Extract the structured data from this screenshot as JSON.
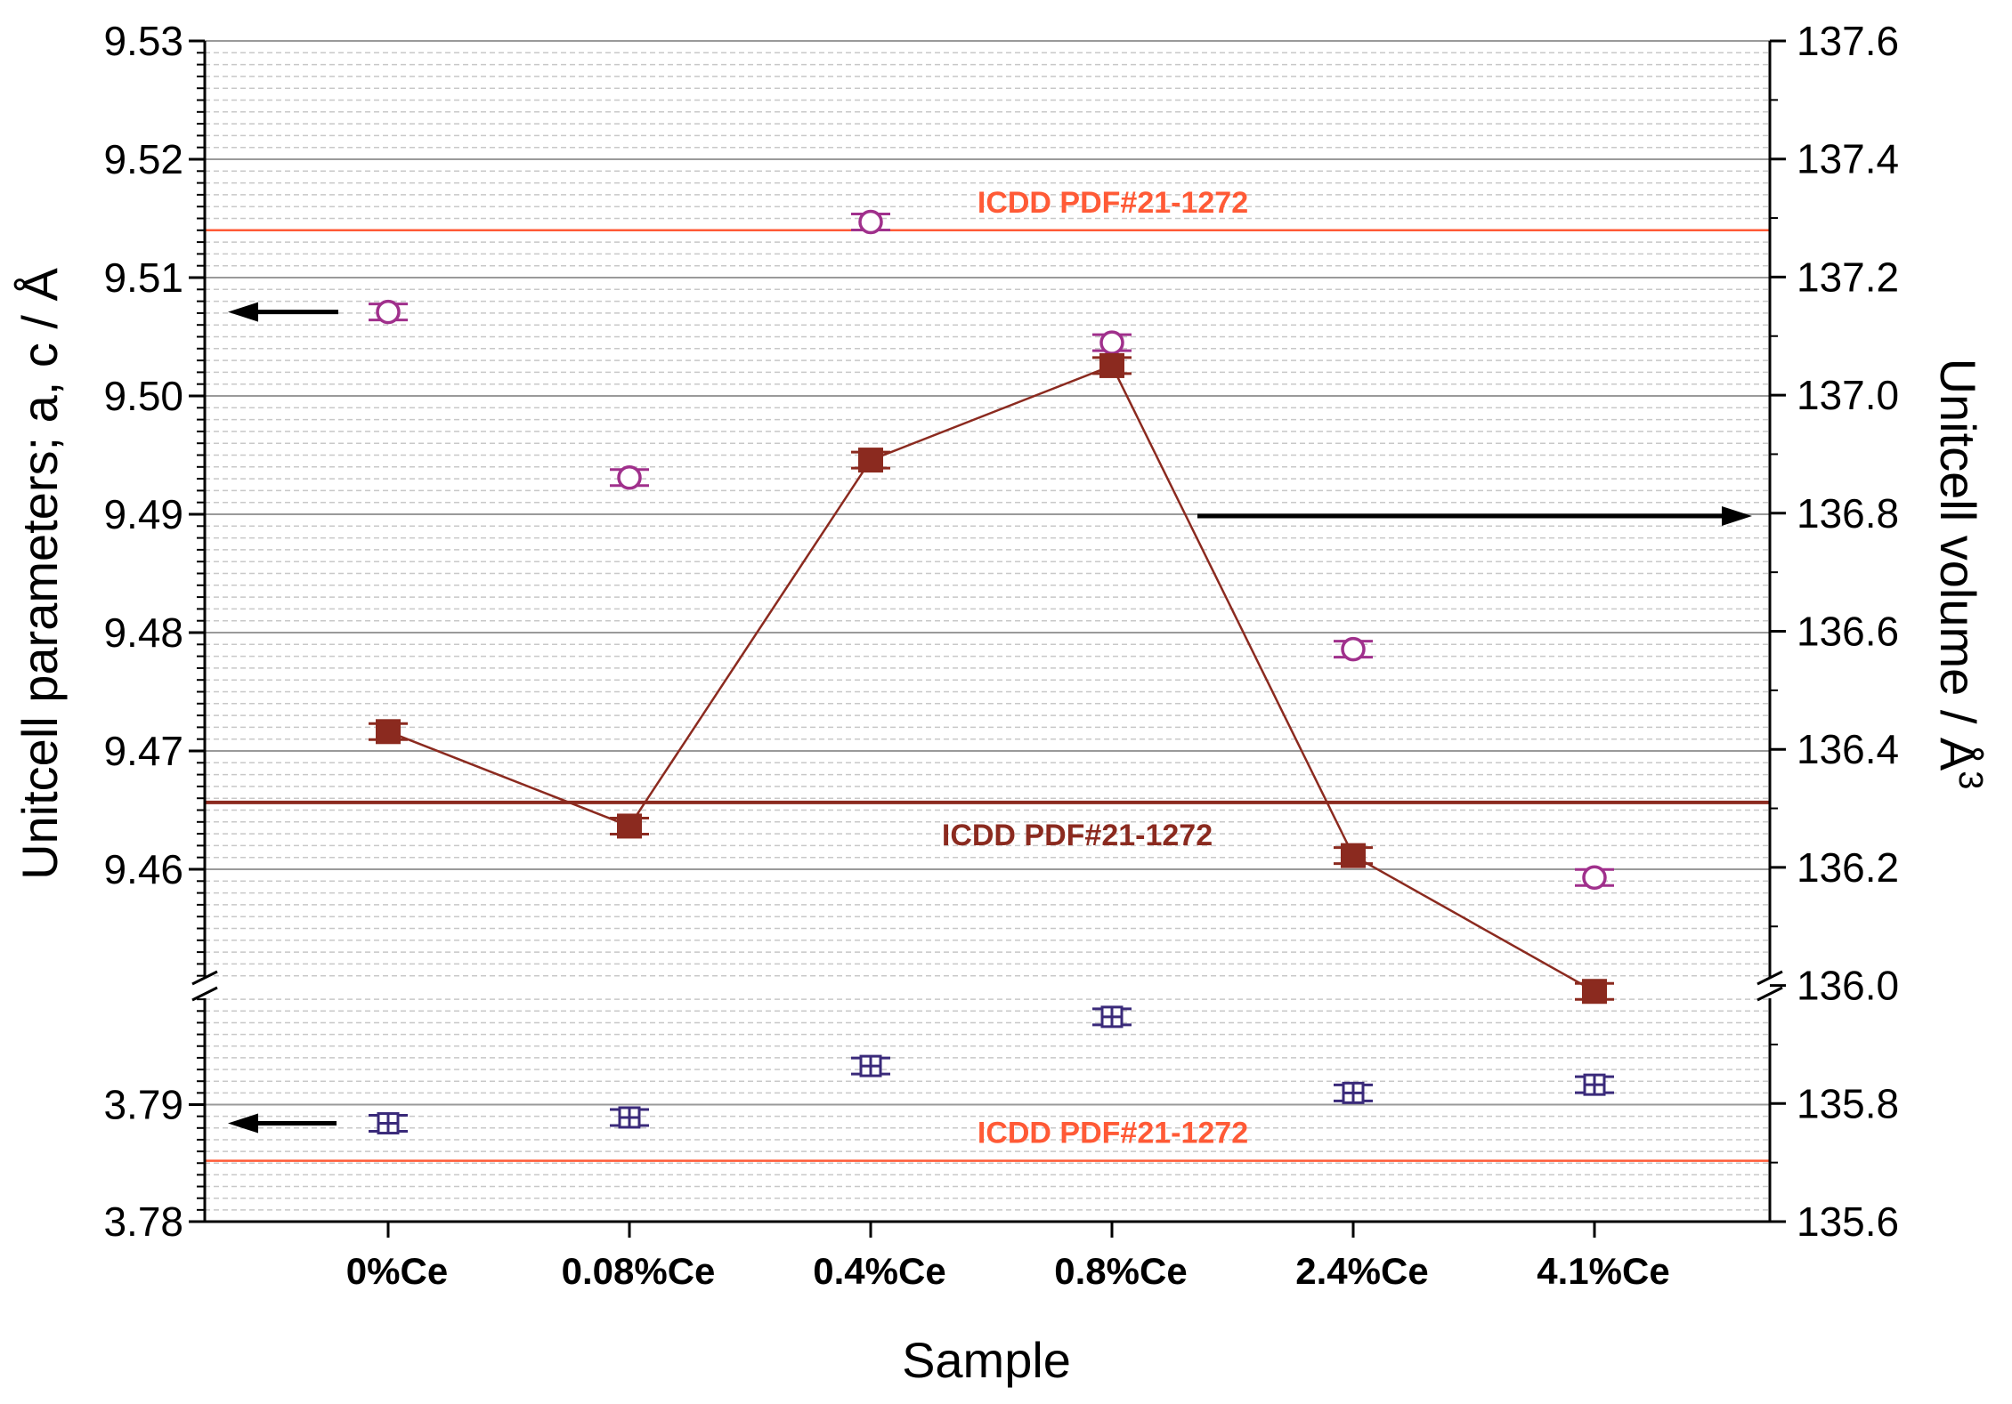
{
  "chart_data": {
    "type": "scatter",
    "x_label": "Sample",
    "y_left_label": "Unitcell parameters; a, c / Å",
    "y_right_label": "Unitcell volume / Å",
    "y_right_label_sup": "3",
    "categories": [
      "0%Ce",
      "0.08%Ce",
      "0.4%Ce",
      "0.8%Ce",
      "2.4%Ce",
      "4.1%Ce"
    ],
    "y_left_upper": {
      "ylim": [
        9.45,
        9.53
      ],
      "ticks": [
        "9.46",
        "9.47",
        "9.48",
        "9.49",
        "9.50",
        "9.51",
        "9.52",
        "9.53"
      ]
    },
    "y_left_lower": {
      "ylim": [
        3.78,
        3.8
      ],
      "ticks": [
        "3.78",
        "3.79"
      ]
    },
    "y_right": {
      "ylim": [
        135.6,
        137.6
      ],
      "ticks": [
        "135.6",
        "135.8",
        "136.0",
        "136.2",
        "136.4",
        "136.6",
        "136.8",
        "137.0",
        "137.2",
        "137.4",
        "137.6"
      ]
    },
    "series": [
      {
        "key": "a",
        "axis": "left-upper",
        "marker": "open-circle",
        "color": "#a0308c",
        "values": [
          9.5071,
          9.4931,
          9.5147,
          9.5045,
          9.4786,
          9.4593
        ]
      },
      {
        "key": "c",
        "axis": "left-lower",
        "marker": "open-square-cross",
        "color": "#3a2a7a",
        "values": [
          3.7884,
          3.7889,
          3.7933,
          3.7975,
          3.791,
          3.7917
        ]
      },
      {
        "key": "V",
        "axis": "right",
        "marker": "filled-square-line",
        "color": "#8b2a1f",
        "values": [
          136.43,
          136.27,
          136.89,
          137.05,
          136.22,
          135.99
        ]
      }
    ],
    "reference_lines": [
      {
        "label": "ICDD PDF#21-1272",
        "axis": "left-upper",
        "value": 9.514,
        "color": "#ff5a36"
      },
      {
        "label": "ICDD PDF#21-1272",
        "axis": "right",
        "value": 136.31,
        "color": "#8b2a1f"
      },
      {
        "label": "ICDD PDF#21-1272",
        "axis": "left-lower",
        "value": 3.7852,
        "color": "#ff5a36"
      }
    ],
    "arrows": [
      {
        "points_to": "left",
        "series": "a"
      },
      {
        "points_to": "right",
        "series": "V"
      },
      {
        "points_to": "left",
        "series": "c"
      }
    ],
    "grid": true,
    "axis_break": true
  }
}
